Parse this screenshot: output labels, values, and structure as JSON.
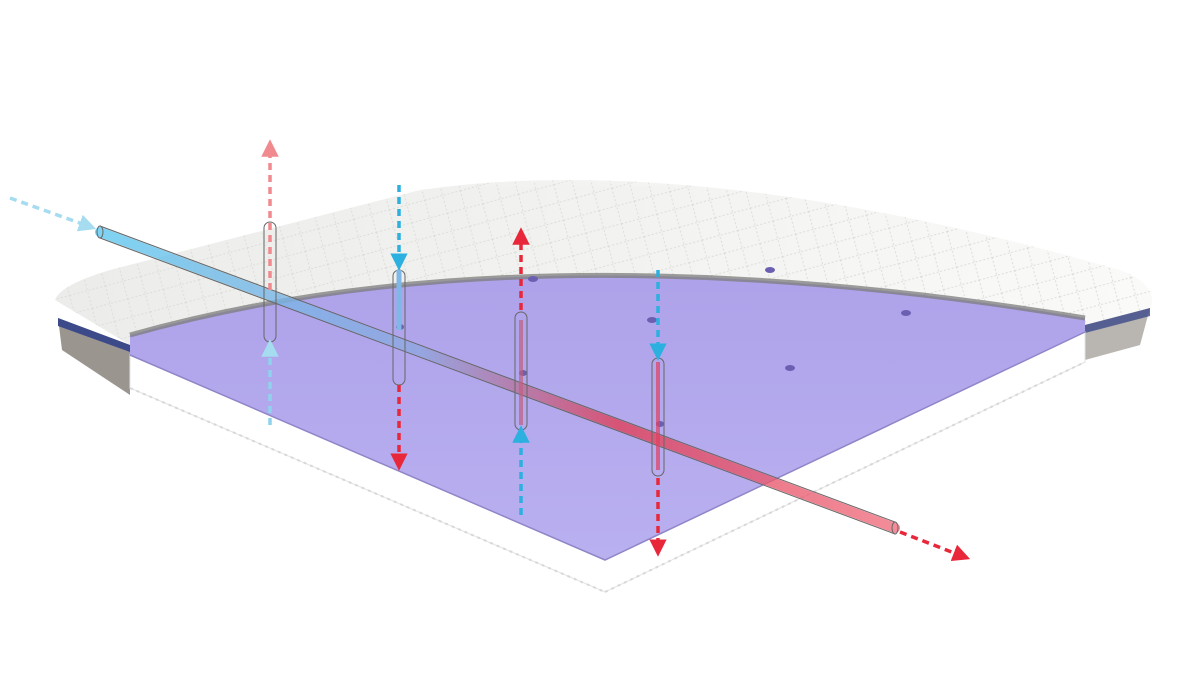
{
  "illustration": {
    "subject": "mattress-topper-airflow",
    "colors": {
      "foam": "#b3a8ec",
      "foam_edge": "#8f86c8",
      "cover": "#f3f3f1",
      "cover_stitch": "#d6e6a4",
      "base_layer": "#ffffff",
      "warm_air": "#e8283a",
      "cool_air": "#2bb0e0",
      "tube_outline": "#555555"
    },
    "arrows": [
      {
        "kind": "cool-inflow",
        "direction": "diagonal-in"
      },
      {
        "kind": "warm-outflow",
        "direction": "diagonal-out"
      },
      {
        "kind": "warm-up",
        "direction": "up"
      },
      {
        "kind": "cool-down-warm-down",
        "direction": "down"
      },
      {
        "kind": "warm-up-cool-up",
        "direction": "up"
      },
      {
        "kind": "cool-down-warm-down",
        "direction": "down"
      }
    ]
  }
}
